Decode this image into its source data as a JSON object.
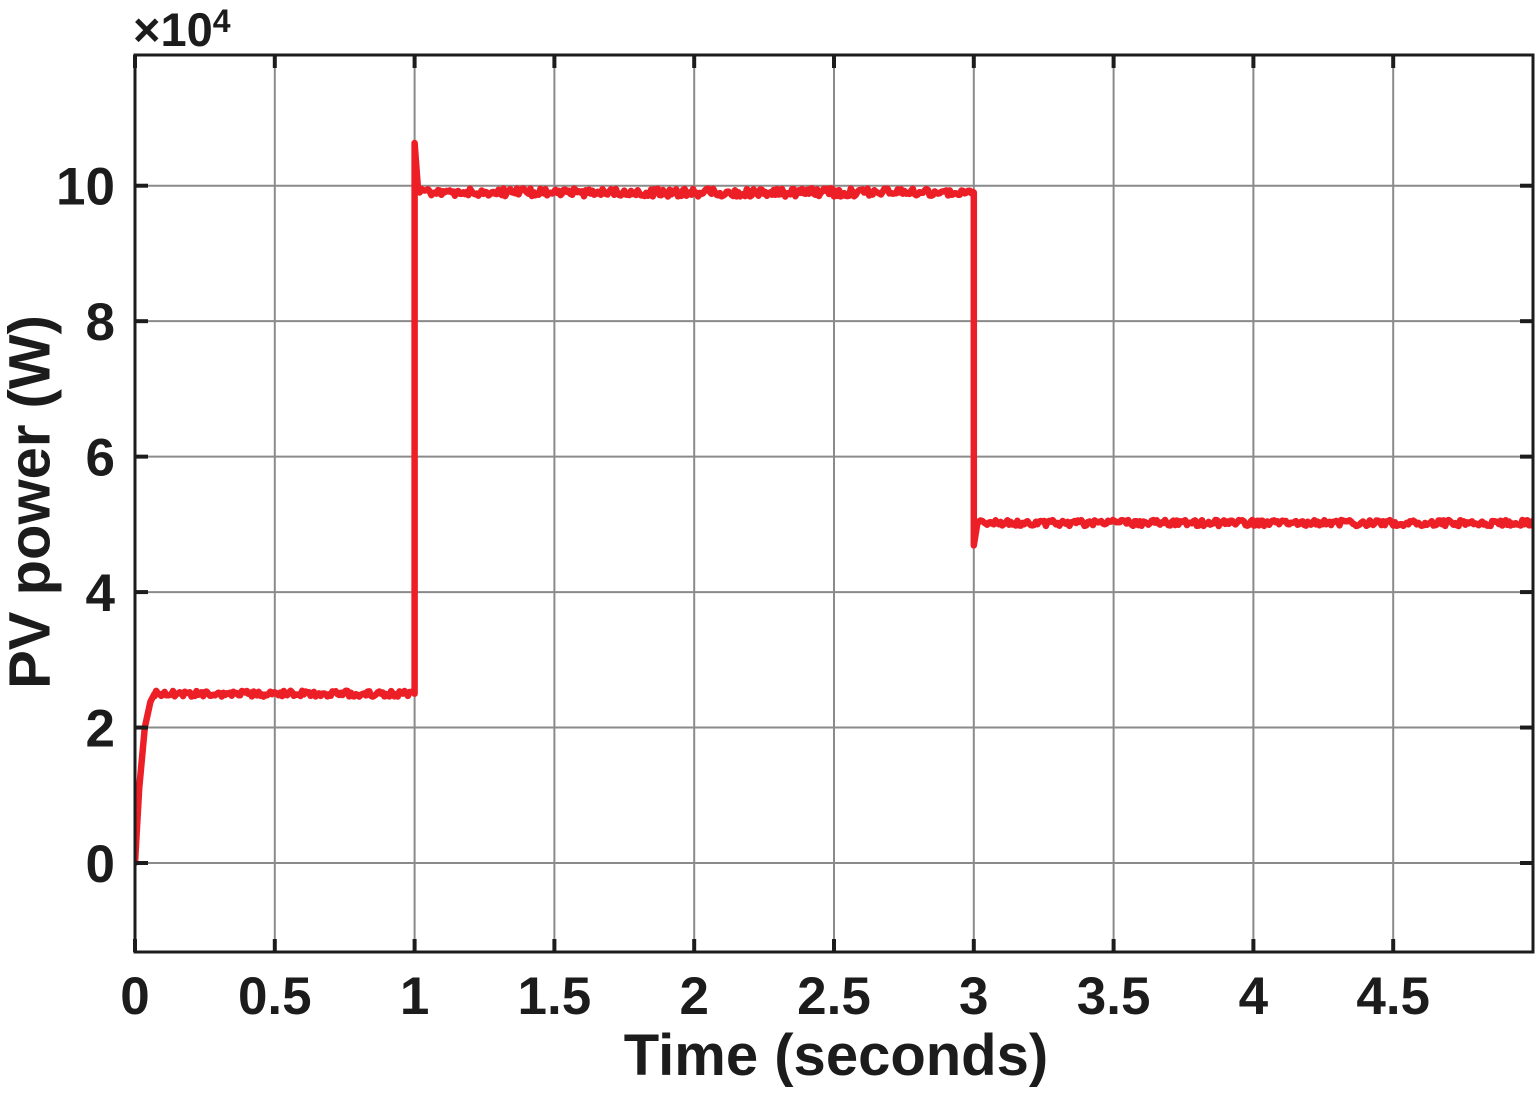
{
  "figure": {
    "background_color": "#ffffff",
    "multiplier_base": "×10",
    "multiplier_exp": "4"
  },
  "chart_data": {
    "type": "line",
    "title": "",
    "xlabel": "Time (seconds)",
    "ylabel": "PV power (W)",
    "y_axis_multiplier": "×10⁴",
    "y_unit_scale_w": 10000,
    "xlim": [
      0,
      5
    ],
    "ylim_e4": [
      -1.314,
      11.93
    ],
    "xticks": [
      0,
      0.5,
      1,
      1.5,
      2,
      2.5,
      3,
      3.5,
      4,
      4.5
    ],
    "xtick_labels": [
      "0",
      "0.5",
      "1",
      "1.5",
      "2",
      "2.5",
      "3",
      "3.5",
      "4",
      "4.5"
    ],
    "yticks_e4": [
      0,
      2,
      4,
      6,
      8,
      10
    ],
    "ytick_labels": [
      "0",
      "2",
      "4",
      "6",
      "8",
      "10"
    ],
    "grid": true,
    "legend": null,
    "line_color": "#ed1f26",
    "grid_color": "#8a8a8a",
    "axis_color": "#1c1c1c",
    "series": [
      {
        "name": "PV power",
        "summary_points_w": [
          [
            0,
            0
          ],
          [
            0.07,
            25000
          ],
          [
            1.0,
            25000
          ],
          [
            1.0,
            106300
          ],
          [
            1.02,
            99000
          ],
          [
            3.0,
            99000
          ],
          [
            3.0,
            46900
          ],
          [
            3.02,
            50200
          ],
          [
            5.0,
            50200
          ]
        ],
        "segments": [
          {
            "type": "path",
            "points_e4": [
              [
                0,
                0
              ],
              [
                0.015,
                1.1
              ],
              [
                0.035,
                2.0
              ],
              [
                0.055,
                2.38
              ],
              [
                0.07,
                2.5
              ]
            ]
          },
          {
            "type": "noisy_flat",
            "x0": 0.07,
            "x1": 1.0,
            "y_e4": 2.5,
            "amp_e4": 0.045
          },
          {
            "type": "path",
            "points_e4": [
              [
                1.0,
                2.5
              ],
              [
                1.0,
                10.63
              ],
              [
                1.012,
                9.95
              ]
            ]
          },
          {
            "type": "noisy_flat",
            "x0": 1.012,
            "x1": 3.0,
            "y_e4": 9.9,
            "amp_e4": 0.06
          },
          {
            "type": "path",
            "points_e4": [
              [
                3.0,
                9.9
              ],
              [
                3.0,
                4.69
              ],
              [
                3.012,
                5.0
              ]
            ]
          },
          {
            "type": "noisy_flat",
            "x0": 3.012,
            "x1": 5.0,
            "y_e4": 5.02,
            "amp_e4": 0.045
          }
        ]
      }
    ]
  }
}
